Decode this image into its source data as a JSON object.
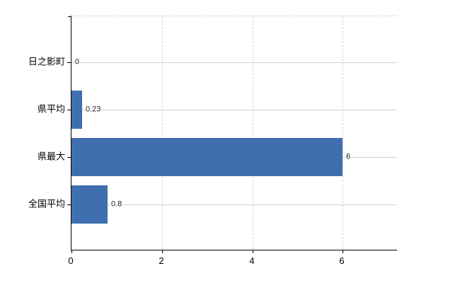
{
  "chart_data": {
    "type": "bar",
    "orientation": "horizontal",
    "categories": [
      "日之影町",
      "県平均",
      "県最大",
      "全国平均"
    ],
    "values": [
      0,
      0.23,
      6,
      0.8
    ],
    "value_labels": [
      "0",
      "0.23",
      "6",
      "0.8"
    ],
    "x_tick_labels": [
      "0",
      "2",
      "4",
      "6"
    ],
    "x_tick_values": [
      0,
      2,
      4,
      6
    ],
    "xlim": [
      0,
      7.2
    ],
    "grid": {
      "horizontal": "solid",
      "vertical": "dashed",
      "top_border": "dashed"
    },
    "legend": "none"
  },
  "colors": {
    "background": "#ffffff",
    "bar": "#3f6fae",
    "bar_edge": "#35639c",
    "horizontal_grid": "#ccd4cc",
    "vertical_grid": "#d6d3d3",
    "axis": "#000000",
    "category_text": "#000000",
    "tick_text": "#000000",
    "value_text": "#222222"
  }
}
